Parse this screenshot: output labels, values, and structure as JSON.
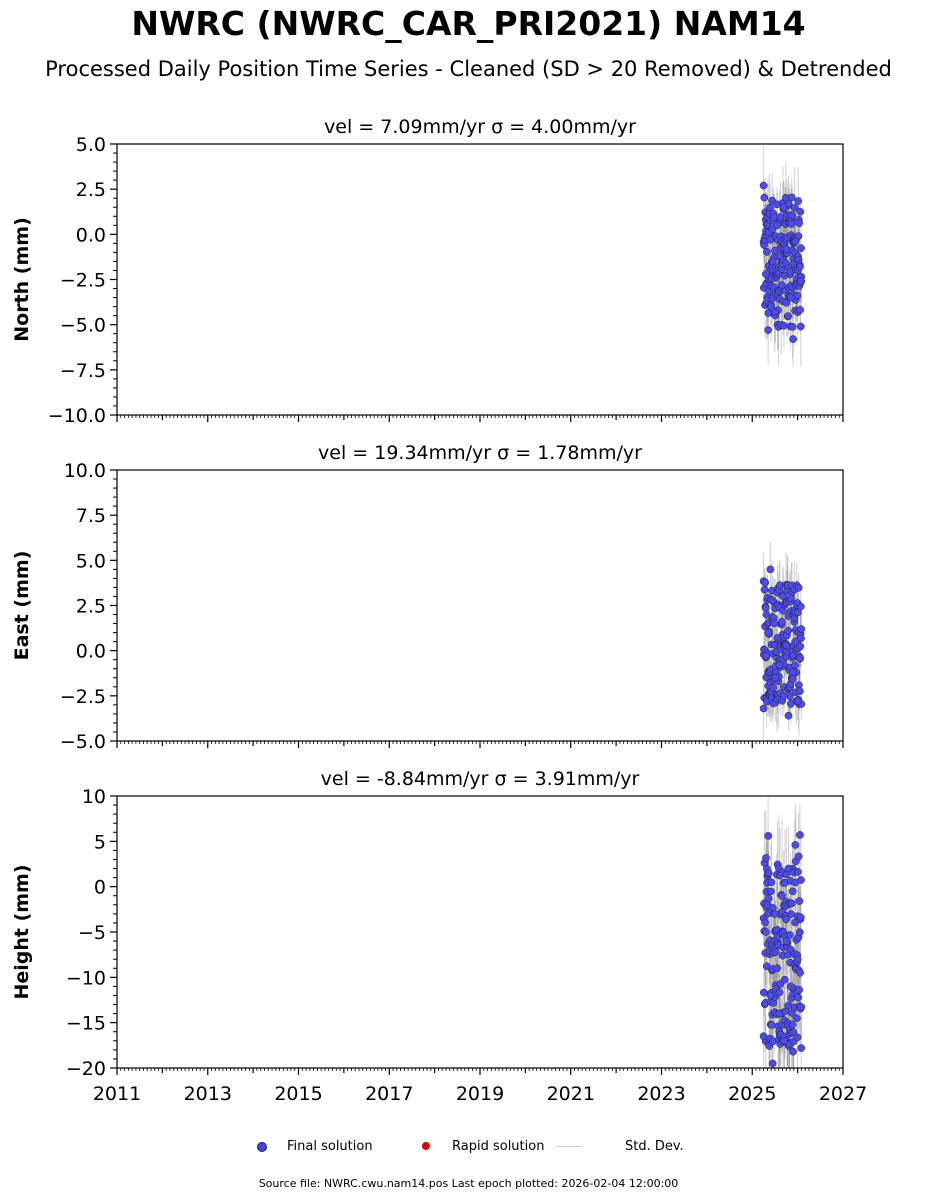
{
  "title": "NWRC (NWRC_CAR_PRI2021) NAM14",
  "subtitle": "Processed Daily Position Time Series - Cleaned (SD > 20 Removed) & Detrended",
  "legend": {
    "final": "Final solution",
    "rapid": "Rapid solution",
    "std": "Std. Dev.",
    "final_color": "#4444ee",
    "rapid_color": "#dd0000",
    "std_color": "#cccccc"
  },
  "footer": "Source file: NWRC.cwu.nam14.pos  Last epoch plotted: 2026-02-04 12:00:00",
  "chart_data": [
    {
      "type": "scatter",
      "title": "vel = 7.09mm/yr   σ = 4.00mm/yr",
      "ylabel": "North (mm)",
      "xlim": [
        2011,
        2027
      ],
      "ylim": [
        -10,
        5
      ],
      "yticks": [
        -10,
        -7.5,
        -5,
        -2.5,
        0,
        2.5,
        5
      ],
      "ytick_labels": [
        "−10.0",
        "−7.5",
        "−5.0",
        "−2.5",
        "0.0",
        "2.5",
        "5.0"
      ],
      "x": [
        2025.25,
        2025.3,
        2025.35,
        2025.4,
        2025.45,
        2025.5,
        2025.55,
        2025.6,
        2025.65,
        2025.7,
        2025.75,
        2025.8,
        2025.85,
        2025.9,
        2025.95,
        2026.0,
        2026.05,
        2026.08
      ],
      "y": [
        2.7,
        -2.2,
        -5.3,
        -0.3,
        -1.5,
        -4.3,
        0.5,
        -1.2,
        -2.8,
        1.5,
        -0.8,
        1.7,
        -3.5,
        -5.8,
        -0.4,
        -2.0,
        -1.8,
        -2.6
      ],
      "point_count_note": null,
      "std_dev_mm": 1.5
    },
    {
      "type": "scatter",
      "title": "vel = 19.34mm/yr   σ = 1.78mm/yr",
      "ylabel": "East (mm)",
      "xlim": [
        2011,
        2027
      ],
      "ylim": [
        -5,
        10
      ],
      "yticks": [
        -5,
        -2.5,
        0,
        2.5,
        5,
        7.5,
        10
      ],
      "ytick_labels": [
        "−5.0",
        "−2.5",
        "0.0",
        "2.5",
        "5.0",
        "7.5",
        "10.0"
      ],
      "x": [
        2025.25,
        2025.3,
        2025.35,
        2025.4,
        2025.45,
        2025.5,
        2025.55,
        2025.6,
        2025.65,
        2025.7,
        2025.75,
        2025.8,
        2025.85,
        2025.9,
        2025.95,
        2026.0,
        2026.05,
        2026.08
      ],
      "y": [
        -3.2,
        -0.3,
        1.0,
        4.5,
        2.8,
        -1.5,
        0.7,
        -0.8,
        1.6,
        -2.5,
        0.3,
        -3.6,
        2.9,
        -1.2,
        0.5,
        -2.8,
        -0.4,
        1.2
      ],
      "std_dev_mm": 1.2
    },
    {
      "type": "scatter",
      "title": "vel = -8.84mm/yr   σ = 3.91mm/yr",
      "ylabel": "Height (mm)",
      "xlim": [
        2011,
        2027
      ],
      "ylim": [
        -20,
        10
      ],
      "yticks": [
        -20,
        -15,
        -10,
        -5,
        0,
        5,
        10
      ],
      "ytick_labels": [
        "−20",
        "−15",
        "−10",
        "−5",
        "0",
        "5",
        "10"
      ],
      "xticks": [
        2011,
        2013,
        2015,
        2017,
        2019,
        2021,
        2023,
        2025,
        2027
      ],
      "xtick_labels": [
        "2011",
        "2013",
        "2015",
        "2017",
        "2019",
        "2021",
        "2023",
        "2025",
        "2027"
      ],
      "x": [
        2025.25,
        2025.3,
        2025.35,
        2025.4,
        2025.45,
        2025.5,
        2025.55,
        2025.6,
        2025.65,
        2025.7,
        2025.75,
        2025.8,
        2025.85,
        2025.9,
        2025.95,
        2026.0,
        2026.05,
        2026.08
      ],
      "y": [
        -16.5,
        -5.0,
        5.6,
        -12.0,
        -19.5,
        -3.0,
        -9.0,
        -14.0,
        -1.0,
        -17.0,
        -6.0,
        2.0,
        -11.0,
        -18.2,
        4.6,
        -8.0,
        5.7,
        -17.8
      ],
      "std_dev_mm": 4.0
    }
  ]
}
